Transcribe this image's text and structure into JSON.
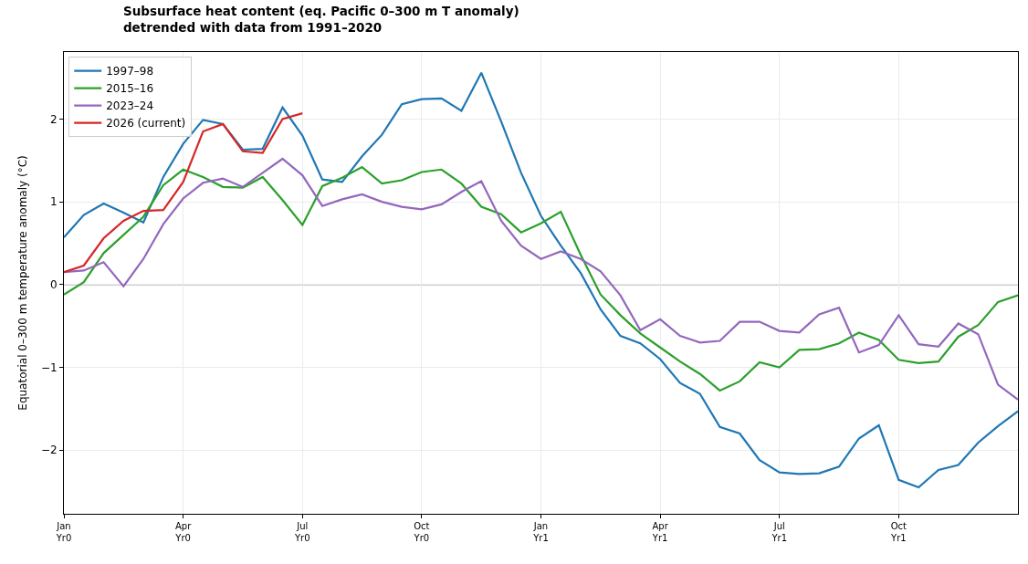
{
  "chart_data": {
    "type": "line",
    "title": "Subsurface heat content (eq. Pacific 0–300 m T anomaly)\ndetrended with data from 1991–2020",
    "ylabel": "Equatorial 0–300 m temperature anomaly (°C)",
    "categories": [
      "Jan\nYr0",
      null,
      null,
      null,
      null,
      null,
      "Apr\nYr0",
      null,
      null,
      null,
      null,
      null,
      "Jul\nYr0",
      null,
      null,
      null,
      null,
      null,
      "Oct\nYr0",
      null,
      null,
      null,
      null,
      null,
      "Jan\nYr1",
      null,
      null,
      null,
      null,
      null,
      "Apr\nYr1",
      null,
      null,
      null,
      null,
      null,
      "Jul\nYr1",
      null,
      null,
      null,
      null,
      null,
      "Oct\nYr1",
      null,
      null,
      null,
      null,
      null,
      null
    ],
    "ylim": [
      -2.77,
      2.81
    ],
    "yticks": [
      {
        "value": -2,
        "label": "−2"
      },
      {
        "value": -1,
        "label": "−1"
      },
      0,
      1,
      2
    ],
    "grid": true,
    "legend": "top left",
    "line_style": "solid",
    "ref_lines": [
      {
        "axis": "y",
        "value": 0,
        "color": "#999999"
      }
    ],
    "series": [
      {
        "name": "1997–98",
        "color": "#1f77b4",
        "values": [
          0.57,
          0.84,
          0.98,
          0.87,
          0.75,
          1.3,
          1.7,
          1.99,
          1.94,
          1.63,
          1.64,
          2.14,
          1.8,
          1.27,
          1.24,
          1.55,
          1.81,
          2.18,
          2.24,
          2.25,
          2.1,
          2.56,
          1.97,
          1.35,
          0.83,
          0.47,
          0.14,
          -0.3,
          -0.62,
          -0.71,
          -0.9,
          -1.19,
          -1.32,
          -1.72,
          -1.8,
          -2.12,
          -2.27,
          -2.29,
          -2.28,
          -2.2,
          -1.86,
          -1.7,
          -2.36,
          -2.45,
          -2.24,
          -2.18,
          -1.91,
          -1.71,
          -1.53
        ]
      },
      {
        "name": "2015–16",
        "color": "#2ca02c",
        "values": [
          -0.12,
          0.03,
          0.38,
          0.6,
          0.82,
          1.2,
          1.39,
          1.3,
          1.18,
          1.17,
          1.3,
          1.02,
          0.72,
          1.19,
          1.29,
          1.42,
          1.22,
          1.26,
          1.36,
          1.39,
          1.22,
          0.94,
          0.85,
          0.63,
          0.74,
          0.88,
          0.36,
          -0.12,
          -0.37,
          -0.59,
          -0.76,
          -0.93,
          -1.08,
          -1.28,
          -1.17,
          -0.94,
          -1.0,
          -0.79,
          -0.78,
          -0.71,
          -0.58,
          -0.67,
          -0.91,
          -0.95,
          -0.93,
          -0.63,
          -0.49,
          -0.21,
          -0.13
        ]
      },
      {
        "name": "2023–24",
        "color": "#9467bd",
        "values": [
          0.15,
          0.17,
          0.27,
          -0.02,
          0.31,
          0.73,
          1.04,
          1.23,
          1.28,
          1.18,
          1.35,
          1.52,
          1.32,
          0.95,
          1.03,
          1.09,
          1.0,
          0.94,
          0.91,
          0.97,
          1.12,
          1.25,
          0.77,
          0.47,
          0.31,
          0.4,
          0.31,
          0.16,
          -0.13,
          -0.55,
          -0.42,
          -0.62,
          -0.7,
          -0.68,
          -0.45,
          -0.45,
          -0.56,
          -0.58,
          -0.36,
          -0.28,
          -0.82,
          -0.73,
          -0.37,
          -0.72,
          -0.75,
          -0.47,
          -0.6,
          -1.21,
          -1.39
        ]
      },
      {
        "name": "2026 (current)",
        "color": "#d62728",
        "values": [
          0.15,
          0.23,
          0.56,
          0.77,
          0.89,
          0.9,
          1.24,
          1.85,
          1.94,
          1.61,
          1.59,
          2.0,
          2.07,
          null,
          null,
          null,
          null,
          null,
          null,
          null,
          null,
          null,
          null,
          null,
          null,
          null,
          null,
          null,
          null,
          null,
          null,
          null,
          null,
          null,
          null,
          null,
          null,
          null,
          null,
          null,
          null,
          null,
          null,
          null,
          null,
          null,
          null,
          null,
          null
        ]
      }
    ]
  }
}
